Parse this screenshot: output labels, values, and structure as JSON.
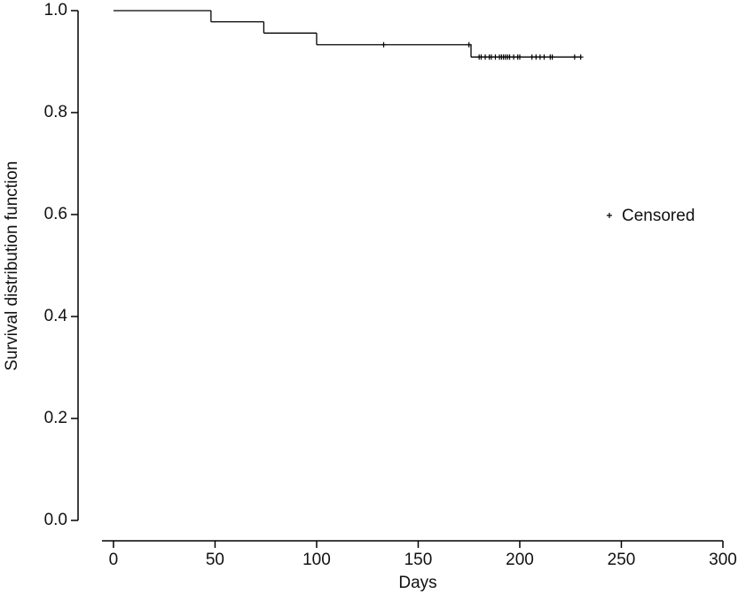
{
  "chart_data": {
    "type": "step",
    "x_label": "Days",
    "y_label": "Survival distribution function",
    "xlim": [
      -17,
      300
    ],
    "ylim": [
      0,
      1
    ],
    "xticks": [
      0,
      50,
      100,
      150,
      200,
      250,
      300
    ],
    "yticks": [
      {
        "value": 0,
        "label": "0.0"
      },
      0.2,
      0.4,
      0.6,
      0.8,
      {
        "value": 1,
        "label": "1.0"
      }
    ],
    "series": [
      {
        "color": "#000000",
        "x": [
          0,
          48,
          74,
          100,
          176
        ],
        "values": [
          1,
          0.978,
          0.956,
          0.933,
          0.909
        ]
      }
    ],
    "censored": {
      "name": "Censored",
      "color": "#000000",
      "x": [
        133,
        175,
        180,
        181,
        183,
        185,
        186,
        188,
        190,
        191,
        192,
        193,
        194,
        195,
        197,
        199,
        200,
        206,
        208,
        210,
        212,
        215,
        216,
        227,
        230
      ],
      "values": [
        0.933,
        0.933,
        0.909,
        0.909,
        0.909,
        0.909,
        0.909,
        0.909,
        0.909,
        0.909,
        0.909,
        0.909,
        0.909,
        0.909,
        0.909,
        0.909,
        0.909,
        0.909,
        0.909,
        0.909,
        0.909,
        0.909,
        0.909,
        0.909,
        0.909
      ]
    },
    "legend": "right"
  }
}
